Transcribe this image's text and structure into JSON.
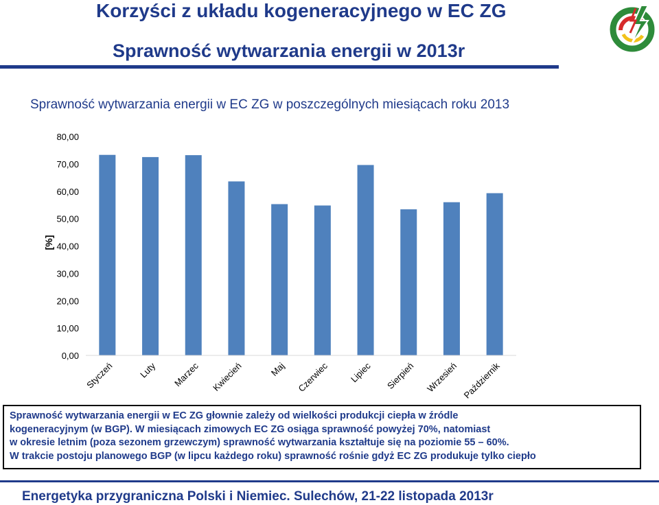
{
  "header": {
    "title_line1": "Korzyści z układu kogeneracyjnego w EC ZG",
    "title_line2": "Sprawność  wytwarzania energii  w 2013r"
  },
  "chart_subtitle": "Sprawność wytwarzania energii  w EC ZG w poszczególnych miesiącach roku 2013",
  "chart_data": {
    "type": "bar",
    "title": "",
    "xlabel": "",
    "ylabel": "[%]",
    "ylim": [
      0,
      80
    ],
    "y_ticks": [
      "0,00",
      "10,00",
      "20,00",
      "30,00",
      "40,00",
      "50,00",
      "60,00",
      "70,00",
      "80,00"
    ],
    "grid": false,
    "color": "#4f81bd",
    "categories": [
      "Styczeń",
      "Luty",
      "Marzec",
      "Kwiecień",
      "Maj",
      "Czerwiec",
      "Lipiec",
      "Sierpień",
      "Wrzesień",
      "Październik"
    ],
    "values": [
      73.3,
      72.5,
      73.2,
      63.6,
      55.3,
      54.8,
      69.6,
      53.4,
      56.0,
      59.3
    ]
  },
  "info": {
    "line1": "Sprawność wytwarzania energii w EC ZG głownie zależy od wielkości produkcji ciepła w źródle",
    "line2": "kogeneracyjnym (w BGP). W miesiącach zimowych EC ZG osiąga sprawność powyżej 70%, natomiast",
    "line3": "w okresie letnim (poza sezonem grzewczym) sprawność wytwarzania kształtuje się na poziomie 55 – 60%.",
    "line4": "W trakcie postoju planowego BGP (w lipcu każdego roku) sprawność rośnie gdyż EC ZG produkuje tylko ciepło"
  },
  "footer": {
    "text": "Energetyka przygraniczna Polski i Niemiec. Sulechów, 21-22 listopada 2013r"
  },
  "colors": {
    "title": "#1f3a8a",
    "bar": "#4f81bd",
    "logo_green": "#2e8b3a",
    "logo_red": "#d62b2b",
    "logo_yellow": "#f2c21b"
  }
}
